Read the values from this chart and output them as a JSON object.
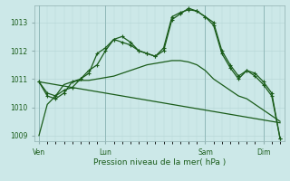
{
  "background_color": "#cce8e8",
  "grid_color": "#b8d8d8",
  "line_color": "#1a5c1a",
  "title": "Pression niveau de la mer( hPa )",
  "ylim": [
    1008.8,
    1013.6
  ],
  "yticks": [
    1009,
    1010,
    1011,
    1012,
    1013
  ],
  "xtick_labels": [
    "Ven",
    "Lun",
    "Sam",
    "Dim"
  ],
  "xtick_positions": [
    0,
    8,
    20,
    27
  ],
  "num_points": 30,
  "series": [
    [
      1009.0,
      1010.1,
      1010.4,
      1010.8,
      1010.9,
      1010.95,
      1010.95,
      1011.0,
      1011.05,
      1011.1,
      1011.2,
      1011.3,
      1011.4,
      1011.5,
      1011.55,
      1011.6,
      1011.65,
      1011.65,
      1011.6,
      1011.5,
      1011.3,
      1011.0,
      1010.8,
      1010.6,
      1010.4,
      1010.3,
      1010.1,
      1009.9,
      1009.7,
      1009.5
    ],
    [
      1010.9,
      1010.85,
      1010.8,
      1010.75,
      1010.7,
      1010.65,
      1010.6,
      1010.55,
      1010.5,
      1010.45,
      1010.4,
      1010.35,
      1010.3,
      1010.25,
      1010.2,
      1010.15,
      1010.1,
      1010.05,
      1010.0,
      1009.95,
      1009.9,
      1009.85,
      1009.8,
      1009.75,
      1009.7,
      1009.65,
      1009.6,
      1009.55,
      1009.5,
      1009.45
    ],
    [
      1010.9,
      1010.5,
      1010.4,
      1010.6,
      1010.7,
      1011.0,
      1011.3,
      1011.5,
      1012.0,
      1012.4,
      1012.3,
      1012.2,
      1012.0,
      1011.9,
      1011.8,
      1012.1,
      1013.2,
      1013.35,
      1013.45,
      1013.4,
      1013.2,
      1013.0,
      1012.0,
      1011.5,
      1011.1,
      1011.3,
      1011.2,
      1010.9,
      1010.5,
      1008.9
    ],
    [
      1010.9,
      1010.4,
      1010.3,
      1010.5,
      1010.9,
      1011.0,
      1011.2,
      1011.9,
      1012.1,
      1012.4,
      1012.5,
      1012.3,
      1012.0,
      1011.9,
      1011.8,
      1012.0,
      1013.1,
      1013.3,
      1013.5,
      1013.4,
      1013.2,
      1012.9,
      1011.9,
      1011.4,
      1011.0,
      1011.3,
      1011.1,
      1010.8,
      1010.4,
      1008.9
    ]
  ]
}
